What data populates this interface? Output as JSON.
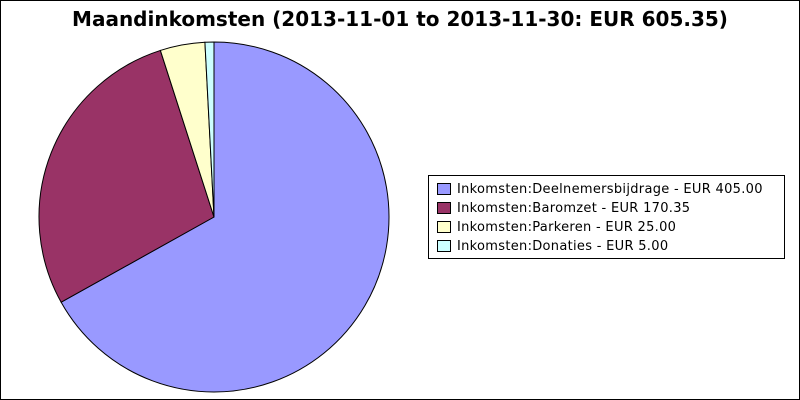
{
  "chart_data": {
    "type": "pie",
    "title": "Maandinkomsten (2013-11-01 to 2013-11-30: EUR 605.35)",
    "currency": "EUR",
    "total": 605.35,
    "legend_position": "right",
    "slices": [
      {
        "name": "Inkomsten:Deelnemersbijdrage",
        "value": 405.0,
        "label": "Inkomsten:Deelnemersbijdrage - EUR 405.00",
        "color": "#9999ff"
      },
      {
        "name": "Inkomsten:Baromzet",
        "value": 170.35,
        "label": "Inkomsten:Baromzet - EUR 170.35",
        "color": "#993366"
      },
      {
        "name": "Inkomsten:Parkeren",
        "value": 25.0,
        "label": "Inkomsten:Parkeren - EUR 25.00",
        "color": "#ffffcc"
      },
      {
        "name": "Inkomsten:Donaties",
        "value": 5.0,
        "label": "Inkomsten:Donaties - EUR 5.00",
        "color": "#ccffff"
      }
    ]
  }
}
